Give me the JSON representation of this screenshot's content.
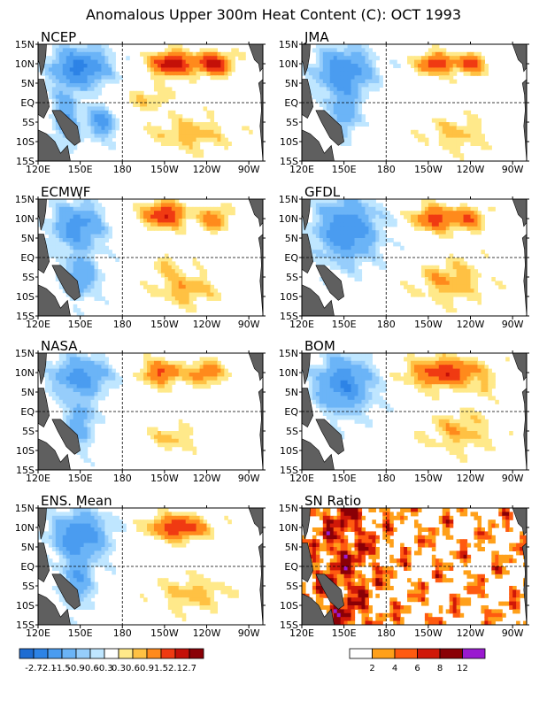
{
  "title": "Anomalous Upper 300m Heat Content (C): OCT 1993",
  "panels": [
    {
      "id": "ncep",
      "label": "NCEP"
    },
    {
      "id": "jma",
      "label": "JMA"
    },
    {
      "id": "ecmwf",
      "label": "ECMWF"
    },
    {
      "id": "gfdl",
      "label": "GFDL"
    },
    {
      "id": "nasa",
      "label": "NASA"
    },
    {
      "id": "bom",
      "label": "BOM"
    },
    {
      "id": "ens",
      "label": "ENS. Mean"
    },
    {
      "id": "sn",
      "label": "SN Ratio"
    }
  ],
  "chart_data": {
    "type": "heatmap",
    "x_ticks": [
      "120E",
      "150E",
      "180",
      "150W",
      "120W",
      "90W"
    ],
    "y_ticks": [
      "15N",
      "10N",
      "5N",
      "EQ",
      "5S",
      "10S",
      "15S"
    ],
    "xlim": [
      120,
      280
    ],
    "ylim": [
      -15,
      15
    ],
    "reference_lines": {
      "lon": 180,
      "lat": 0
    },
    "anomaly_colorbar": {
      "labels": [
        "-2.7",
        "-2.1",
        "-1.5",
        "-0.9",
        "-0.6",
        "-0.3",
        "0.3",
        "0.6",
        "0.9",
        "1.5",
        "2.1",
        "2.7"
      ],
      "colors": [
        "#1e6cd2",
        "#2d83e6",
        "#4a9cf0",
        "#6bb4f7",
        "#96cdfb",
        "#bfe6ff",
        "#ffffff",
        "#ffe98a",
        "#ffc143",
        "#ff8a1c",
        "#f03a12",
        "#c41008",
        "#8a0006"
      ]
    },
    "sn_colorbar": {
      "labels": [
        "2",
        "4",
        "6",
        "8",
        "12"
      ],
      "colors": [
        "#ffffff",
        "#ffa01a",
        "#ff5a10",
        "#d01808",
        "#8a0006",
        "#9a1ad0"
      ]
    },
    "land_color": "#5f5f5f"
  }
}
